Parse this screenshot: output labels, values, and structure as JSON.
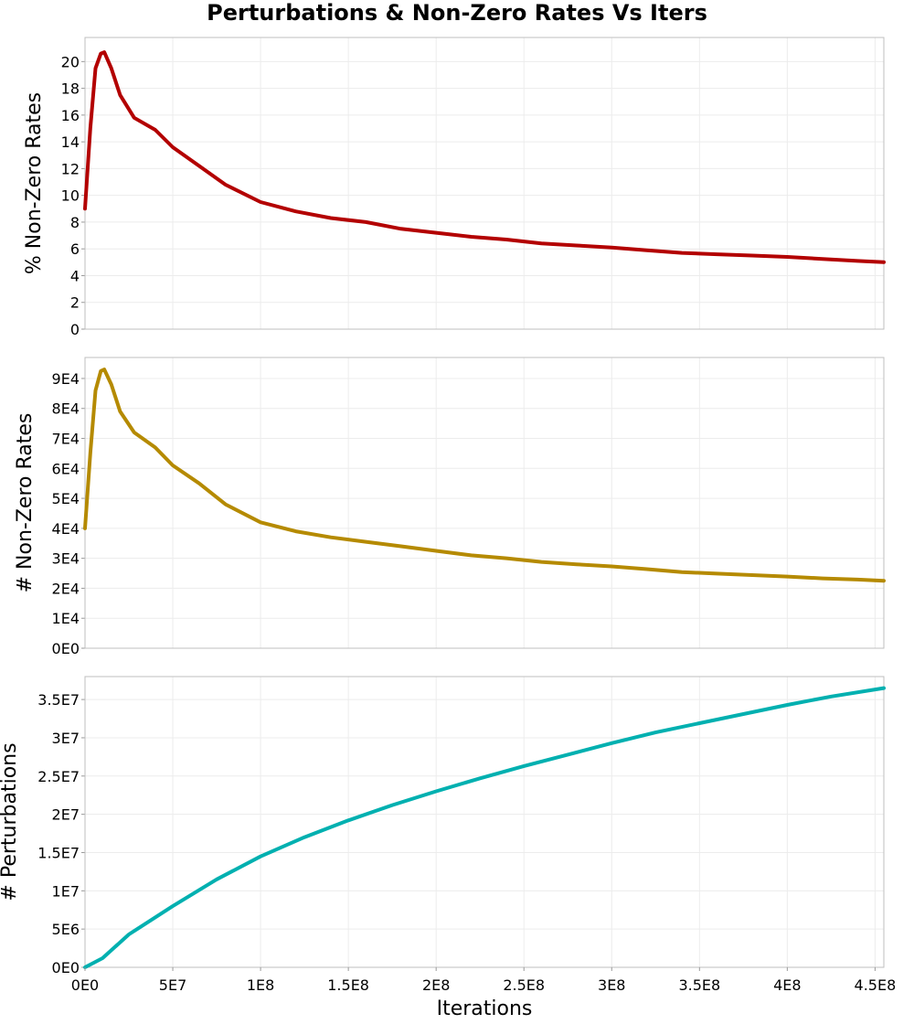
{
  "chart_data": {
    "title": "Perturbations & Non-Zero Rates Vs Iters",
    "xlabel": "Iterations",
    "x_ticks": [
      {
        "value": 0,
        "label": "0E0"
      },
      {
        "value": 50000000,
        "label": "5E7"
      },
      {
        "value": 100000000,
        "label": "1E8"
      },
      {
        "value": 150000000,
        "label": "1.5E8"
      },
      {
        "value": 200000000,
        "label": "2E8"
      },
      {
        "value": 250000000,
        "label": "2.5E8"
      },
      {
        "value": 300000000,
        "label": "3E8"
      },
      {
        "value": 350000000,
        "label": "3.5E8"
      },
      {
        "value": 400000000,
        "label": "4E8"
      },
      {
        "value": 450000000,
        "label": "4.5E8"
      }
    ],
    "xlim": [
      0,
      455000000
    ],
    "grid": true,
    "panels": [
      {
        "type": "line",
        "ylabel": "% Non-Zero Rates",
        "color": "#b30000",
        "ylim": [
          0,
          21.8
        ],
        "y_ticks": [
          {
            "value": 0,
            "label": "0"
          },
          {
            "value": 2,
            "label": "2"
          },
          {
            "value": 4,
            "label": "4"
          },
          {
            "value": 6,
            "label": "6"
          },
          {
            "value": 8,
            "label": "8"
          },
          {
            "value": 10,
            "label": "10"
          },
          {
            "value": 12,
            "label": "12"
          },
          {
            "value": 14,
            "label": "14"
          },
          {
            "value": 16,
            "label": "16"
          },
          {
            "value": 18,
            "label": "18"
          },
          {
            "value": 20,
            "label": "20"
          }
        ],
        "x": [
          0,
          3000000,
          6000000,
          9000000,
          11000000,
          15000000,
          20000000,
          28000000,
          40000000,
          50000000,
          65000000,
          80000000,
          100000000,
          120000000,
          140000000,
          160000000,
          180000000,
          200000000,
          220000000,
          240000000,
          260000000,
          280000000,
          300000000,
          320000000,
          340000000,
          360000000,
          380000000,
          400000000,
          420000000,
          440000000,
          455000000
        ],
        "y": [
          9.0,
          15.0,
          19.5,
          20.6,
          20.7,
          19.5,
          17.5,
          15.8,
          14.9,
          13.6,
          12.2,
          10.8,
          9.5,
          8.8,
          8.3,
          8.0,
          7.5,
          7.2,
          6.9,
          6.7,
          6.4,
          6.25,
          6.1,
          5.9,
          5.7,
          5.6,
          5.5,
          5.4,
          5.25,
          5.1,
          5.0
        ]
      },
      {
        "type": "line",
        "ylabel": "# Non-Zero Rates",
        "color": "#b58a00",
        "ylim": [
          0,
          97000
        ],
        "y_ticks": [
          {
            "value": 0,
            "label": "0E0"
          },
          {
            "value": 10000,
            "label": "1E4"
          },
          {
            "value": 20000,
            "label": "2E4"
          },
          {
            "value": 30000,
            "label": "3E4"
          },
          {
            "value": 40000,
            "label": "4E4"
          },
          {
            "value": 50000,
            "label": "5E4"
          },
          {
            "value": 60000,
            "label": "6E4"
          },
          {
            "value": 70000,
            "label": "7E4"
          },
          {
            "value": 80000,
            "label": "8E4"
          },
          {
            "value": 90000,
            "label": "9E4"
          }
        ],
        "x": [
          0,
          3000000,
          6000000,
          9000000,
          11000000,
          15000000,
          20000000,
          28000000,
          40000000,
          50000000,
          65000000,
          80000000,
          100000000,
          120000000,
          140000000,
          160000000,
          180000000,
          200000000,
          220000000,
          240000000,
          260000000,
          280000000,
          300000000,
          320000000,
          340000000,
          360000000,
          380000000,
          400000000,
          420000000,
          440000000,
          455000000
        ],
        "y": [
          40000,
          65000,
          86000,
          92500,
          93000,
          88000,
          79000,
          72000,
          67000,
          61000,
          55000,
          48000,
          42000,
          39000,
          37000,
          35500,
          34000,
          32500,
          31000,
          30000,
          28800,
          28000,
          27300,
          26400,
          25400,
          24900,
          24400,
          23900,
          23300,
          22900,
          22500
        ]
      },
      {
        "type": "line",
        "ylabel": "# Perturbations",
        "color": "#00b0b0",
        "ylim": [
          0,
          38000000
        ],
        "y_ticks": [
          {
            "value": 0,
            "label": "0E0"
          },
          {
            "value": 5000000,
            "label": "5E6"
          },
          {
            "value": 10000000,
            "label": "1E7"
          },
          {
            "value": 15000000,
            "label": "1.5E7"
          },
          {
            "value": 20000000,
            "label": "2E7"
          },
          {
            "value": 25000000,
            "label": "2.5E7"
          },
          {
            "value": 30000000,
            "label": "3E7"
          },
          {
            "value": 35000000,
            "label": "3.5E7"
          }
        ],
        "x": [
          0,
          10000000,
          25000000,
          50000000,
          75000000,
          100000000,
          125000000,
          150000000,
          175000000,
          200000000,
          225000000,
          250000000,
          275000000,
          300000000,
          325000000,
          350000000,
          375000000,
          400000000,
          425000000,
          455000000
        ],
        "y": [
          0,
          1200000,
          4300000,
          8000000,
          11500000,
          14500000,
          17000000,
          19200000,
          21200000,
          23000000,
          24700000,
          26300000,
          27800000,
          29300000,
          30700000,
          31900000,
          33100000,
          34300000,
          35400000,
          36500000
        ]
      }
    ]
  }
}
